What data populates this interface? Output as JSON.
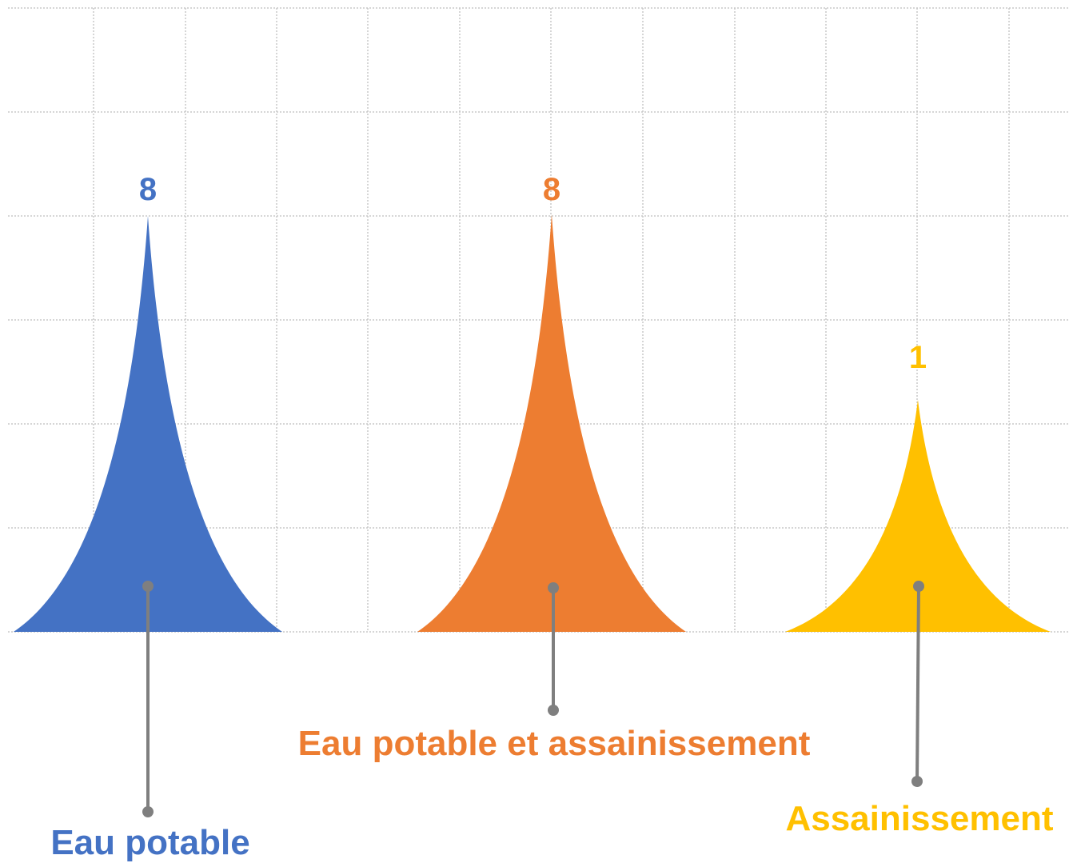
{
  "chart_data": {
    "type": "bar",
    "shape": "spike",
    "categories": [
      "Eau potable",
      "Eau potable et assainissement",
      "Assainissement"
    ],
    "values": [
      8,
      8,
      1
    ],
    "data_labels": [
      "8",
      "8",
      "1"
    ],
    "colors": [
      "#4472C4",
      "#ED7D31",
      "#FFC000"
    ],
    "grid": true,
    "legend": "none"
  }
}
